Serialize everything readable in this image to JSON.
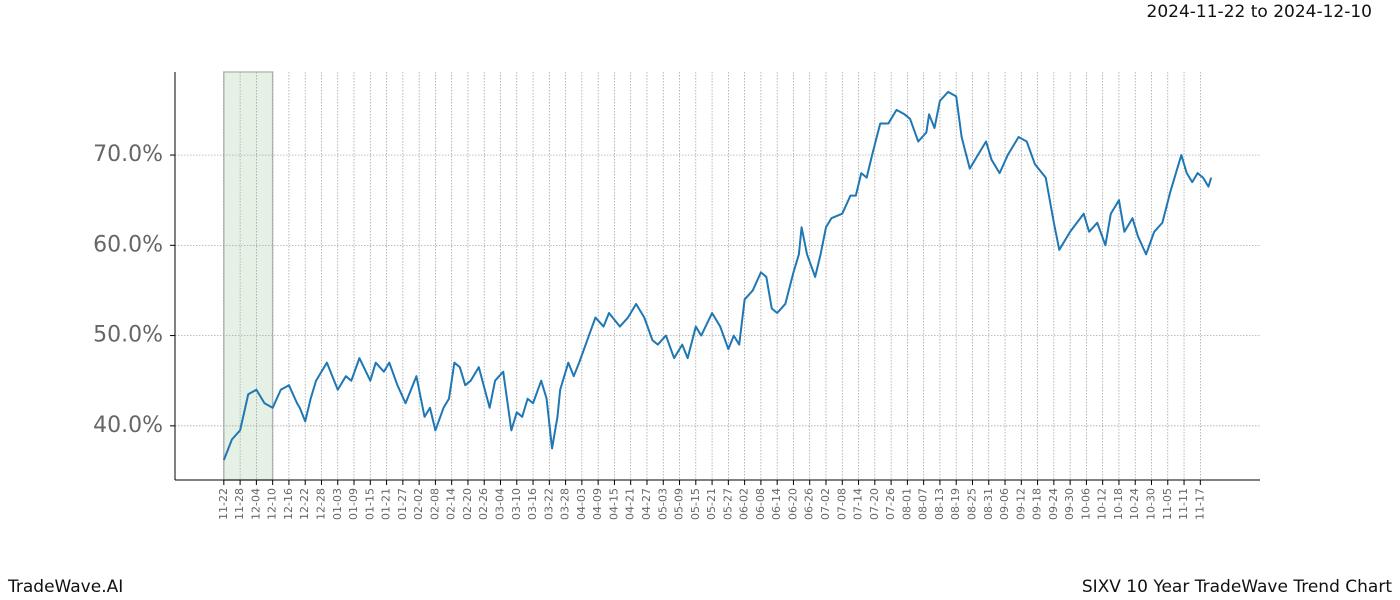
{
  "chart_data": {
    "type": "line",
    "title": "2024-11-22 to 2024-12-10",
    "footer_left": "TradeWave.AI",
    "footer_right": "SIXV 10 Year TradeWave Trend Chart",
    "color": "#1f77b4",
    "highlight": [
      0,
      18
    ],
    "highlight_color": "#d5e8d4",
    "grid": true,
    "xlim": [
      -18,
      382
    ],
    "ylim": [
      34,
      79.2
    ],
    "yticks": [
      {
        "value": 40,
        "label": "40.0%"
      },
      {
        "value": 50,
        "label": "50.0%"
      },
      {
        "value": 60,
        "label": "60.0%"
      },
      {
        "value": 70,
        "label": "70.0%"
      }
    ],
    "xticks": [
      {
        "value": 0,
        "label": "11-22"
      },
      {
        "value": 6,
        "label": "11-28"
      },
      {
        "value": 12,
        "label": "12-04"
      },
      {
        "value": 18,
        "label": "12-10"
      },
      {
        "value": 24,
        "label": "12-16"
      },
      {
        "value": 30,
        "label": "12-22"
      },
      {
        "value": 36,
        "label": "12-28"
      },
      {
        "value": 42,
        "label": "01-03"
      },
      {
        "value": 48,
        "label": "01-09"
      },
      {
        "value": 54,
        "label": "01-15"
      },
      {
        "value": 60,
        "label": "01-21"
      },
      {
        "value": 66,
        "label": "01-27"
      },
      {
        "value": 72,
        "label": "02-02"
      },
      {
        "value": 78,
        "label": "02-08"
      },
      {
        "value": 84,
        "label": "02-14"
      },
      {
        "value": 90,
        "label": "02-20"
      },
      {
        "value": 96,
        "label": "02-26"
      },
      {
        "value": 102,
        "label": "03-04"
      },
      {
        "value": 108,
        "label": "03-10"
      },
      {
        "value": 114,
        "label": "03-16"
      },
      {
        "value": 120,
        "label": "03-22"
      },
      {
        "value": 126,
        "label": "03-28"
      },
      {
        "value": 132,
        "label": "04-03"
      },
      {
        "value": 138,
        "label": "04-09"
      },
      {
        "value": 144,
        "label": "04-15"
      },
      {
        "value": 150,
        "label": "04-21"
      },
      {
        "value": 156,
        "label": "04-27"
      },
      {
        "value": 162,
        "label": "05-03"
      },
      {
        "value": 168,
        "label": "05-09"
      },
      {
        "value": 174,
        "label": "05-15"
      },
      {
        "value": 180,
        "label": "05-21"
      },
      {
        "value": 186,
        "label": "05-27"
      },
      {
        "value": 192,
        "label": "06-02"
      },
      {
        "value": 198,
        "label": "06-08"
      },
      {
        "value": 204,
        "label": "06-14"
      },
      {
        "value": 210,
        "label": "06-20"
      },
      {
        "value": 216,
        "label": "06-26"
      },
      {
        "value": 222,
        "label": "07-02"
      },
      {
        "value": 228,
        "label": "07-08"
      },
      {
        "value": 234,
        "label": "07-14"
      },
      {
        "value": 240,
        "label": "07-20"
      },
      {
        "value": 246,
        "label": "07-26"
      },
      {
        "value": 252,
        "label": "08-01"
      },
      {
        "value": 258,
        "label": "08-07"
      },
      {
        "value": 264,
        "label": "08-13"
      },
      {
        "value": 270,
        "label": "08-19"
      },
      {
        "value": 276,
        "label": "08-25"
      },
      {
        "value": 282,
        "label": "08-31"
      },
      {
        "value": 288,
        "label": "09-06"
      },
      {
        "value": 294,
        "label": "09-12"
      },
      {
        "value": 300,
        "label": "09-18"
      },
      {
        "value": 306,
        "label": "09-24"
      },
      {
        "value": 312,
        "label": "09-30"
      },
      {
        "value": 318,
        "label": "10-06"
      },
      {
        "value": 324,
        "label": "10-12"
      },
      {
        "value": 330,
        "label": "10-18"
      },
      {
        "value": 336,
        "label": "10-24"
      },
      {
        "value": 342,
        "label": "10-30"
      },
      {
        "value": 348,
        "label": "11-05"
      },
      {
        "value": 354,
        "label": "11-11"
      },
      {
        "value": 360,
        "label": "11-17"
      }
    ],
    "x": [
      0,
      3,
      6,
      9,
      12,
      15,
      18,
      21,
      24,
      27,
      28,
      30,
      32,
      34,
      38,
      42,
      45,
      47,
      50,
      54,
      56,
      59,
      61,
      64,
      67,
      69,
      71,
      74,
      76,
      78,
      81,
      83,
      85,
      87,
      89,
      91,
      94,
      98,
      100,
      103,
      106,
      108,
      110,
      112,
      114,
      117,
      119,
      121,
      123,
      124,
      127,
      129,
      131,
      134,
      137,
      140,
      142,
      146,
      149,
      152,
      155,
      158,
      160,
      163,
      166,
      169,
      171,
      174,
      176,
      180,
      183,
      186,
      188,
      190,
      192,
      195,
      198,
      200,
      202,
      204,
      207,
      210,
      212,
      213,
      215,
      218,
      220,
      222,
      224,
      228,
      231,
      233,
      235,
      237,
      239,
      242,
      245,
      248,
      251,
      253,
      256,
      259,
      260,
      262,
      264,
      267,
      270,
      272,
      275,
      278,
      281,
      283,
      286,
      289,
      293,
      296,
      299,
      303,
      306,
      308,
      312,
      317,
      319,
      322,
      325,
      327,
      330,
      332,
      335,
      337,
      340,
      343,
      346,
      349,
      352,
      353,
      355,
      357,
      359,
      361,
      363,
      364
    ],
    "values": [
      36.2,
      38.5,
      39.5,
      43.5,
      44.0,
      42.5,
      42.0,
      44.0,
      44.5,
      42.5,
      42.0,
      40.5,
      43.0,
      45.0,
      47.0,
      44.0,
      45.5,
      45.0,
      47.5,
      45.0,
      47.0,
      46.0,
      47.0,
      44.5,
      42.5,
      44.0,
      45.5,
      41.0,
      42.0,
      39.5,
      42.0,
      43.0,
      47.0,
      46.5,
      44.5,
      45.0,
      46.5,
      42.0,
      45.0,
      46.0,
      39.5,
      41.5,
      41.0,
      43.0,
      42.5,
      45.0,
      43.0,
      37.5,
      41.0,
      44.0,
      47.0,
      45.5,
      47.0,
      49.5,
      52.0,
      51.0,
      52.5,
      51.0,
      52.0,
      53.5,
      52.0,
      49.5,
      49.0,
      50.0,
      47.5,
      49.0,
      47.5,
      51.0,
      50.0,
      52.5,
      51.0,
      48.5,
      50.0,
      49.0,
      54.0,
      55.0,
      57.0,
      56.5,
      53.0,
      52.5,
      53.5,
      57.0,
      59.0,
      62.0,
      59.0,
      56.5,
      59.0,
      62.0,
      63.0,
      63.5,
      65.5,
      65.5,
      68.0,
      67.5,
      70.0,
      73.5,
      73.5,
      75.0,
      74.5,
      74.0,
      71.5,
      72.5,
      74.5,
      73.0,
      76.0,
      77.0,
      76.5,
      72.0,
      68.5,
      70.0,
      71.5,
      69.5,
      68.0,
      70.0,
      72.0,
      71.5,
      69.0,
      67.5,
      62.5,
      59.5,
      61.5,
      63.5,
      61.5,
      62.5,
      60.0,
      63.5,
      65.0,
      61.5,
      63.0,
      61.0,
      59.0,
      61.5,
      62.5,
      66.0,
      69.0,
      70.0,
      68.0,
      67.0,
      68.0,
      67.5,
      66.5,
      67.5
    ]
  }
}
